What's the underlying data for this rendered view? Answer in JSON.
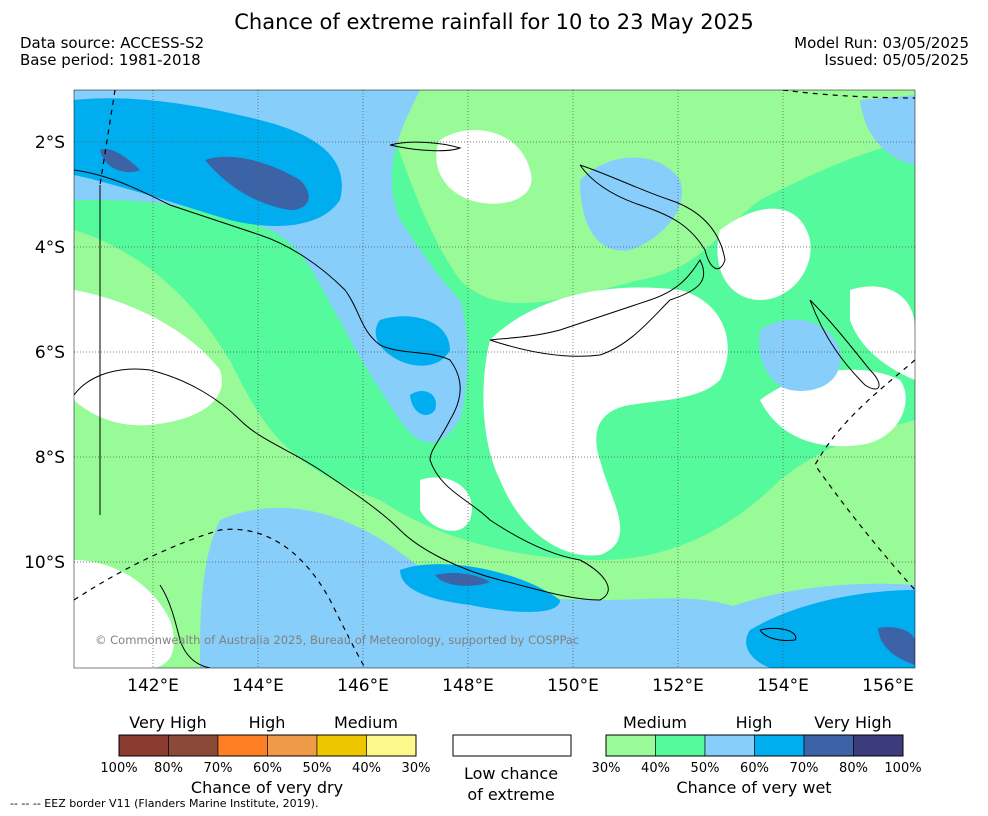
{
  "title": "Chance of extreme rainfall for 10 to 23 May 2025",
  "meta": {
    "data_source": "Data source: ACCESS-S2",
    "base_period": "Base period: 1981-2018",
    "model_run": "Model Run: 03/05/2025",
    "issued": "Issued: 05/05/2025"
  },
  "map": {
    "lat_labels": [
      "2°S",
      "4°S",
      "6°S",
      "8°S",
      "10°S"
    ],
    "lon_labels": [
      "142°E",
      "144°E",
      "146°E",
      "148°E",
      "150°E",
      "152°E",
      "154°E",
      "156°E"
    ],
    "copyright": "© Commonwealth of Australia 2025, Bureau of Meteorology, supported by COSPPac"
  },
  "legend": {
    "dry": {
      "headings": [
        "Very High",
        "High",
        "Medium"
      ],
      "colors": [
        "#8b3a30",
        "#8b4a38",
        "#ff7f27",
        "#ee9a48",
        "#eec600",
        "#fef78a"
      ],
      "ticks": [
        "100%",
        "80%",
        "70%",
        "60%",
        "50%",
        "40%",
        "30%"
      ],
      "caption": "Chance of very dry"
    },
    "low": {
      "color": "#ffffff",
      "caption_line1": "Low chance",
      "caption_line2": "of extreme"
    },
    "wet": {
      "headings": [
        "Medium",
        "High",
        "Very High"
      ],
      "colors": [
        "#98fb98",
        "#54fa9b",
        "#87cefa",
        "#00aeef",
        "#3b63a5",
        "#3c3b7c"
      ],
      "ticks": [
        "30%",
        "40%",
        "50%",
        "60%",
        "70%",
        "80%",
        "100%"
      ],
      "caption": "Chance of very wet"
    }
  },
  "footnote": "--  --  -- EEZ border V11 (Flanders Marine Institute, 2019)."
}
